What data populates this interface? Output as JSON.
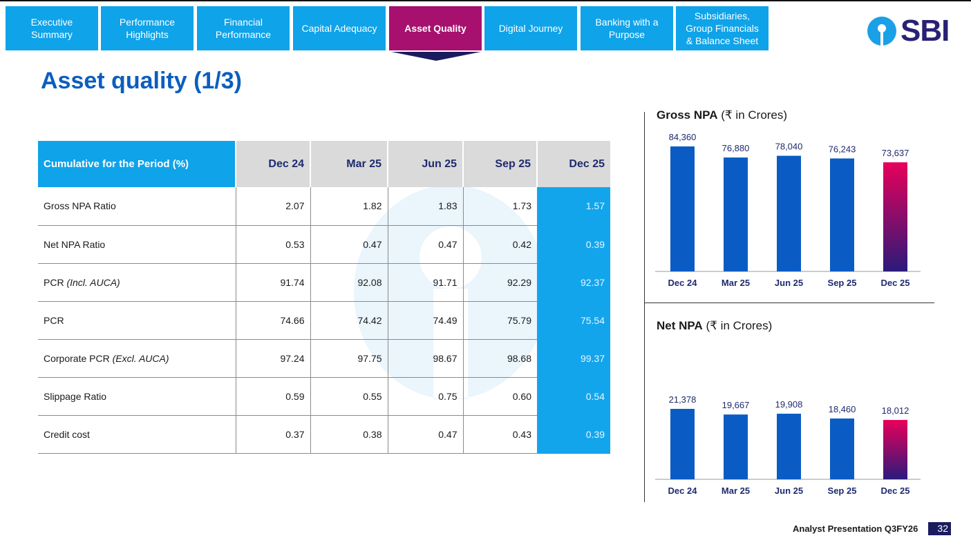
{
  "nav": {
    "tabs": [
      {
        "label": "Executive\nSummary",
        "active": false
      },
      {
        "label": "Performance\nHighlights",
        "active": false
      },
      {
        "label": "Financial\nPerformance",
        "active": false
      },
      {
        "label": "Capital Adequacy",
        "active": false
      },
      {
        "label": "Asset Quality",
        "active": true
      },
      {
        "label": "Digital Journey",
        "active": false
      },
      {
        "label": "Banking with a\nPurpose",
        "active": false
      },
      {
        "label": "Subsidiaries,\nGroup Financials\n& Balance Sheet",
        "active": false
      }
    ]
  },
  "logo": {
    "text": "SBI"
  },
  "page": {
    "title": "Asset quality (1/3)"
  },
  "table": {
    "header": {
      "label": "Cumulative for the Period (%)",
      "periods": [
        "Dec 24",
        "Mar 25",
        "Jun 25",
        "Sep 25",
        "Dec 25"
      ]
    },
    "rows": [
      {
        "label": "Gross NPA Ratio",
        "note": "",
        "values": [
          "2.07",
          "1.82",
          "1.83",
          "1.73",
          "1.57"
        ]
      },
      {
        "label": "Net NPA Ratio",
        "note": "",
        "values": [
          "0.53",
          "0.47",
          "0.47",
          "0.42",
          "0.39"
        ]
      },
      {
        "label": "PCR ",
        "note": "(Incl. AUCA)",
        "values": [
          "91.74",
          "92.08",
          "91.71",
          "92.29",
          "92.37"
        ]
      },
      {
        "label": "PCR",
        "note": "",
        "values": [
          "74.66",
          "74.42",
          "74.49",
          "75.79",
          "75.54"
        ]
      },
      {
        "label": "Corporate PCR ",
        "note": "(Excl. AUCA)",
        "values": [
          "97.24",
          "97.75",
          "98.67",
          "98.68",
          "99.37"
        ]
      },
      {
        "label": "Slippage Ratio",
        "note": "",
        "values": [
          "0.59",
          "0.55",
          "0.75",
          "0.60",
          "0.54"
        ]
      },
      {
        "label": "Credit cost",
        "note": "",
        "values": [
          "0.37",
          "0.38",
          "0.47",
          "0.43",
          "0.39"
        ]
      }
    ]
  },
  "charts": {
    "gross": {
      "title_bold": "Gross NPA",
      "title_rest": " (₹ in Crores)"
    },
    "net": {
      "title_bold": "Net NPA",
      "title_rest": " (₹ in Crores)"
    }
  },
  "chart_data": [
    {
      "type": "bar",
      "title": "Gross NPA (₹ in Crores)",
      "categories": [
        "Dec 24",
        "Mar 25",
        "Jun 25",
        "Sep 25",
        "Dec 25"
      ],
      "values": [
        84360,
        76880,
        78040,
        76243,
        73637
      ],
      "labels": [
        "84,360",
        "76,880",
        "78,040",
        "76,243",
        "73,637"
      ],
      "xlabel": "",
      "ylabel": "",
      "ylim": [
        0,
        84360
      ]
    },
    {
      "type": "bar",
      "title": "Net NPA (₹ in Crores)",
      "categories": [
        "Dec 24",
        "Mar 25",
        "Jun 25",
        "Sep 25",
        "Dec 25"
      ],
      "values": [
        21378,
        19667,
        19908,
        18460,
        18012
      ],
      "labels": [
        "21,378",
        "19,667",
        "19,908",
        "18,460",
        "18,012"
      ],
      "xlabel": "",
      "ylabel": "",
      "ylim": [
        0,
        21378
      ]
    }
  ],
  "colors": {
    "bar": "#0a5cc4",
    "highlight_top": "#e8005a",
    "highlight_bottom": "#2b1a7a",
    "accent": "#0fa3e9",
    "active_tab": "#a7106e"
  },
  "footer": {
    "text": "Analyst Presentation Q3FY26",
    "page_number": "32"
  }
}
